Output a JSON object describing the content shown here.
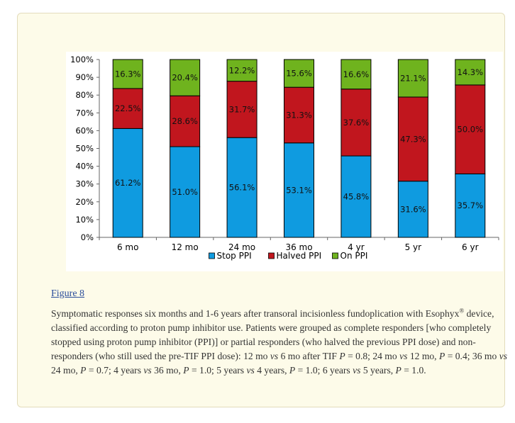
{
  "figure_link": "Figure 8",
  "caption": {
    "segments": [
      {
        "t": "Symptomatic responses six months and 1-6 years after transoral incisionless fundoplication with Esophyx",
        "s": "n"
      },
      {
        "t": "®",
        "s": "sup"
      },
      {
        "t": " device, classified according to proton pump inhibitor use. Patients were grouped as complete responders [who completely stopped using proton pump inhibitor (PPI)] or partial responders (who halved the previous PPI dose) and non-responders (who still used the pre-TIF PPI dose): 12 mo ",
        "s": "n"
      },
      {
        "t": "vs",
        "s": "i"
      },
      {
        "t": " 6 mo after TIF ",
        "s": "n"
      },
      {
        "t": "P",
        "s": "i"
      },
      {
        "t": " = 0.8; 24 mo ",
        "s": "n"
      },
      {
        "t": "vs",
        "s": "i"
      },
      {
        "t": " 12 mo, ",
        "s": "n"
      },
      {
        "t": "P",
        "s": "i"
      },
      {
        "t": " = 0.4; 36 mo ",
        "s": "n"
      },
      {
        "t": "vs",
        "s": "i"
      },
      {
        "t": " 24 mo, ",
        "s": "n"
      },
      {
        "t": "P",
        "s": "i"
      },
      {
        "t": " = 0.7; 4 years ",
        "s": "n"
      },
      {
        "t": "vs",
        "s": "i"
      },
      {
        "t": " 36 mo, ",
        "s": "n"
      },
      {
        "t": "P",
        "s": "i"
      },
      {
        "t": " = 1.0; 5 years ",
        "s": "n"
      },
      {
        "t": "vs",
        "s": "i"
      },
      {
        "t": " 4 years, ",
        "s": "n"
      },
      {
        "t": "P",
        "s": "i"
      },
      {
        "t": " = 1.0; 6 years ",
        "s": "n"
      },
      {
        "t": "vs",
        "s": "i"
      },
      {
        "t": " 5 years, ",
        "s": "n"
      },
      {
        "t": "P",
        "s": "i"
      },
      {
        "t": " = 1.0.",
        "s": "n"
      }
    ]
  },
  "colors": {
    "stop": "#0f9be0",
    "halved": "#c1161e",
    "on": "#6fb31e",
    "panel_bg": "#fdfbe9",
    "link": "#2a4d9b"
  },
  "chart_data": {
    "type": "bar",
    "stacked": true,
    "categories": [
      "6 mo",
      "12 mo",
      "24 mo",
      "36 mo",
      "4 yr",
      "5 yr",
      "6 yr"
    ],
    "series": [
      {
        "name": "Stop PPI",
        "values": [
          61.2,
          51.0,
          56.1,
          53.1,
          45.8,
          31.6,
          35.7
        ],
        "labels": [
          "61.2%",
          "51.0%",
          "56.1%",
          "53.1%",
          "45.8%",
          "31.6%",
          "35.7%"
        ],
        "color": "#0f9be0"
      },
      {
        "name": "Halved PPI",
        "values": [
          22.5,
          28.6,
          31.7,
          31.3,
          37.6,
          47.3,
          50.0
        ],
        "labels": [
          "22.5%",
          "28.6%",
          "31.7%",
          "31.3%",
          "37.6%",
          "47.3%",
          "50.0%"
        ],
        "color": "#c1161e"
      },
      {
        "name": "On PPI",
        "values": [
          16.3,
          20.4,
          12.2,
          15.6,
          16.6,
          21.1,
          14.3
        ],
        "labels": [
          "16.3%",
          "20.4%",
          "12.2%",
          "15.6%",
          "16.6%",
          "21.1%",
          "14.3%"
        ],
        "color": "#6fb31e"
      }
    ],
    "y_ticks": [
      "0%",
      "10%",
      "20%",
      "30%",
      "40%",
      "50%",
      "60%",
      "70%",
      "80%",
      "90%",
      "100%"
    ],
    "ylim": [
      0,
      100
    ],
    "legend": "bottom",
    "grid": false
  }
}
